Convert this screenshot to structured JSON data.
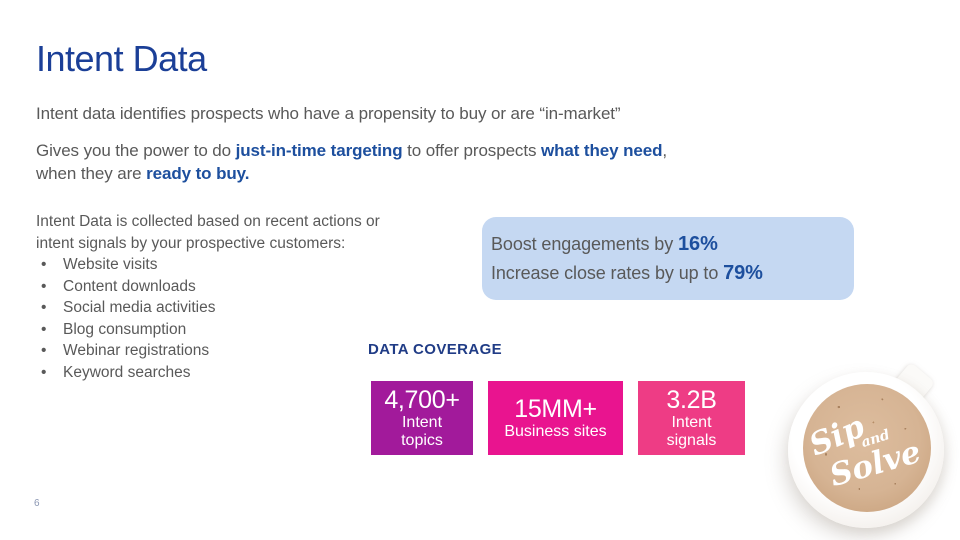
{
  "slide": {
    "title": "Intent Data",
    "page_number": "6"
  },
  "intro": {
    "text": "Intent data identifies prospects who have a propensity to buy or are “in-market”"
  },
  "power": {
    "line1": [
      "Gives you the power to do ",
      "just-in-time targeting",
      " to offer prospects ",
      "what they need",
      ","
    ],
    "line2": [
      "when they are ",
      "ready to buy."
    ]
  },
  "collection": {
    "intro": "Intent Data is collected based on recent actions or intent signals by your prospective customers:",
    "bullets": [
      "Website visits",
      "Content downloads",
      "Social media activities",
      "Blog consumption",
      "Webinar registrations",
      "Keyword searches"
    ]
  },
  "callout": {
    "bg": "#c5d8f2",
    "line1_text": "Boost engagements by ",
    "line1_value": "16%",
    "line2_text": "Increase close rates by up to ",
    "line2_value": "79%"
  },
  "data_coverage": {
    "label": "DATA COVERAGE",
    "boxes": [
      {
        "value": "4,700+",
        "label": "Intent topics",
        "label_lines": [
          "Intent",
          "topics"
        ],
        "color": "#a21a9b"
      },
      {
        "value": "15MM+",
        "label": "Business sites",
        "label_lines": [
          "Business sites"
        ],
        "color": "#e9148f"
      },
      {
        "value": "3.2B",
        "label": "Intent signals",
        "label_lines": [
          "Intent",
          "signals"
        ],
        "color": "#ee3c85"
      }
    ]
  },
  "coffee": {
    "word1": "Sip",
    "word2": "and",
    "word3": "Solve"
  },
  "colors": {
    "title_navy": "#1b3f97",
    "body_gray": "#595959",
    "accent_blue": "#1d4f9e",
    "coverage_navy": "#203c86"
  }
}
